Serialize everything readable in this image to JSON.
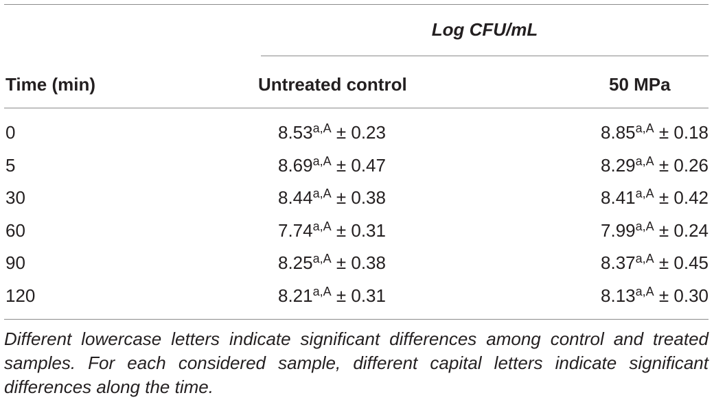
{
  "table": {
    "group_header": "Log CFU/mL",
    "headers": {
      "time": "Time (min)",
      "control": "Untreated control",
      "mpa": "50 MPa"
    },
    "rows": [
      {
        "time": "0",
        "control": {
          "value": "8.53",
          "sup": "a,A",
          "sd": " ± 0.23"
        },
        "mpa": {
          "value": "8.85",
          "sup": "a,A",
          "sd": " ± 0.18"
        }
      },
      {
        "time": "5",
        "control": {
          "value": "8.69",
          "sup": "a,A",
          "sd": " ± 0.47"
        },
        "mpa": {
          "value": "8.29",
          "sup": "a,A",
          "sd": " ± 0.26"
        }
      },
      {
        "time": "30",
        "control": {
          "value": "8.44",
          "sup": "a,A",
          "sd": " ± 0.38"
        },
        "mpa": {
          "value": "8.41",
          "sup": "a,A",
          "sd": " ± 0.42"
        }
      },
      {
        "time": "60",
        "control": {
          "value": "7.74",
          "sup": "a,A",
          "sd": " ± 0.31"
        },
        "mpa": {
          "value": "7.99",
          "sup": "a,A",
          "sd": " ± 0.24"
        }
      },
      {
        "time": "90",
        "control": {
          "value": "8.25",
          "sup": "a,A",
          "sd": " ± 0.38"
        },
        "mpa": {
          "value": "8.37",
          "sup": "a,A",
          "sd": " ± 0.45"
        }
      },
      {
        "time": "120",
        "control": {
          "value": "8.21",
          "sup": "a,A",
          "sd": " ± 0.31"
        },
        "mpa": {
          "value": "8.13",
          "sup": "a,A",
          "sd": " ± 0.30"
        }
      }
    ],
    "footnote": "Different lowercase letters indicate significant differences among control and treated samples. For each considered sample, different capital letters indicate significant differences along the time."
  }
}
